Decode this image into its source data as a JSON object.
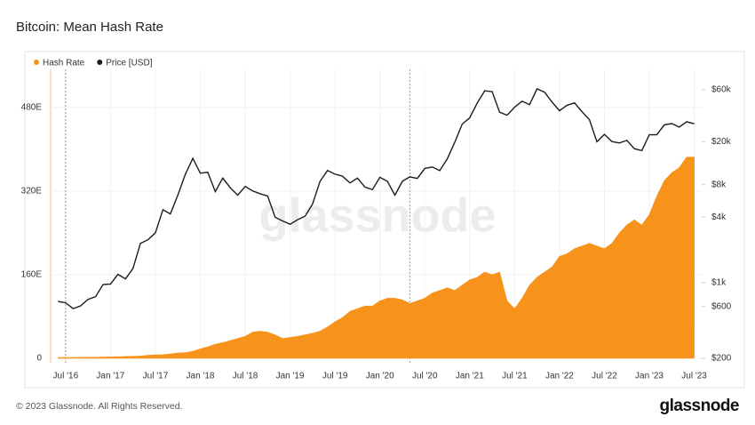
{
  "chart_data": {
    "type": "area-line",
    "title": "Bitcoin: Mean Hash Rate",
    "x": [
      "2016-06",
      "2016-07",
      "2016-08",
      "2016-09",
      "2016-10",
      "2016-11",
      "2016-12",
      "2017-01",
      "2017-02",
      "2017-03",
      "2017-04",
      "2017-05",
      "2017-06",
      "2017-07",
      "2017-08",
      "2017-09",
      "2017-10",
      "2017-11",
      "2017-12",
      "2018-01",
      "2018-02",
      "2018-03",
      "2018-04",
      "2018-05",
      "2018-06",
      "2018-07",
      "2018-08",
      "2018-09",
      "2018-10",
      "2018-11",
      "2018-12",
      "2019-01",
      "2019-02",
      "2019-03",
      "2019-04",
      "2019-05",
      "2019-06",
      "2019-07",
      "2019-08",
      "2019-09",
      "2019-10",
      "2019-11",
      "2019-12",
      "2020-01",
      "2020-02",
      "2020-03",
      "2020-04",
      "2020-05",
      "2020-06",
      "2020-07",
      "2020-08",
      "2020-09",
      "2020-10",
      "2020-11",
      "2020-12",
      "2021-01",
      "2021-02",
      "2021-03",
      "2021-04",
      "2021-05",
      "2021-06",
      "2021-07",
      "2021-08",
      "2021-09",
      "2021-10",
      "2021-11",
      "2021-12",
      "2022-01",
      "2022-02",
      "2022-03",
      "2022-04",
      "2022-05",
      "2022-06",
      "2022-07",
      "2022-08",
      "2022-09",
      "2022-10",
      "2022-11",
      "2022-12",
      "2023-01",
      "2023-02",
      "2023-03",
      "2023-04",
      "2023-05",
      "2023-06",
      "2023-07"
    ],
    "series": [
      {
        "name": "Hash Rate",
        "color": "#f7931a",
        "axis": "y",
        "values": [
          1.5,
          1.6,
          1.7,
          1.9,
          2.0,
          2.1,
          2.3,
          2.7,
          3.0,
          3.6,
          3.9,
          4.5,
          5.8,
          6.5,
          7.0,
          8.5,
          10,
          11,
          13.5,
          18,
          22,
          27,
          30,
          34,
          38,
          42,
          50,
          52,
          50,
          45,
          38,
          40,
          42,
          45,
          48,
          52,
          60,
          70,
          78,
          90,
          95,
          100,
          100,
          110,
          115,
          115,
          112,
          105,
          110,
          115,
          125,
          130,
          135,
          130,
          140,
          150,
          155,
          165,
          160,
          165,
          110,
          95,
          115,
          140,
          155,
          165,
          175,
          195,
          200,
          210,
          215,
          220,
          215,
          210,
          220,
          240,
          255,
          265,
          255,
          275,
          310,
          340,
          355,
          365,
          385,
          385
        ]
      },
      {
        "name": "Price [USD]",
        "color": "#1c1c1c",
        "axis": "y2",
        "values": [
          670,
          650,
          575,
          610,
          700,
          740,
          960,
          970,
          1190,
          1080,
          1350,
          2300,
          2480,
          2880,
          4700,
          4300,
          6400,
          10000,
          14000,
          10200,
          10400,
          6900,
          9200,
          7500,
          6400,
          7700,
          7000,
          6600,
          6300,
          4000,
          3700,
          3450,
          3800,
          4100,
          5300,
          8600,
          10800,
          10000,
          9600,
          8300,
          9200,
          7600,
          7200,
          9350,
          8600,
          6400,
          8600,
          9450,
          9140,
          11300,
          11650,
          10780,
          13800,
          19700,
          29000,
          33100,
          45200,
          58800,
          57700,
          37300,
          35000,
          41500,
          47100,
          43800,
          61300,
          57000,
          46300,
          38500,
          43200,
          45500,
          37700,
          31800,
          19900,
          23300,
          20000,
          19400,
          20500,
          17200,
          16500,
          23100,
          23100,
          28500,
          29300,
          27200,
          30500,
          29200
        ]
      }
    ],
    "xlim": [
      "2016-05",
      "2023-08"
    ],
    "xticks": [
      {
        "value": "2016-07",
        "label": "Jul '16"
      },
      {
        "value": "2017-01",
        "label": "Jan '17"
      },
      {
        "value": "2017-07",
        "label": "Jul '17"
      },
      {
        "value": "2018-01",
        "label": "Jan '18"
      },
      {
        "value": "2018-07",
        "label": "Jul '18"
      },
      {
        "value": "2019-01",
        "label": "Jan '19"
      },
      {
        "value": "2019-07",
        "label": "Jul '19"
      },
      {
        "value": "2020-01",
        "label": "Jan '20"
      },
      {
        "value": "2020-07",
        "label": "Jul '20"
      },
      {
        "value": "2021-01",
        "label": "Jan '21"
      },
      {
        "value": "2021-07",
        "label": "Jul '21"
      },
      {
        "value": "2022-01",
        "label": "Jan '22"
      },
      {
        "value": "2022-07",
        "label": "Jul '22"
      },
      {
        "value": "2023-01",
        "label": "Jan '23"
      },
      {
        "value": "2023-07",
        "label": "Jul '23"
      }
    ],
    "ylim": [
      0,
      553
    ],
    "yticks": [
      0,
      {
        "value": 160,
        "label": "160E"
      },
      {
        "value": 320,
        "label": "320E"
      },
      {
        "value": 480,
        "label": "480E"
      }
    ],
    "y2lim": [
      200,
      92700
    ],
    "y2log": true,
    "y2ticks": [
      {
        "value": 200,
        "label": "$200"
      },
      {
        "value": 600,
        "label": "$600"
      },
      {
        "value": 1000,
        "label": "$1k"
      },
      {
        "value": 4000,
        "label": "$4k"
      },
      {
        "value": 8000,
        "label": "$8k"
      },
      {
        "value": 20000,
        "label": "$20k"
      },
      {
        "value": 60000,
        "label": "$60k"
      }
    ],
    "vlines": [
      "2016-07",
      "2020-05"
    ],
    "grid": true,
    "legend": "top-left"
  },
  "copyright": "© 2023 Glassnode. All Rights Reserved.",
  "brand": "glassnode"
}
